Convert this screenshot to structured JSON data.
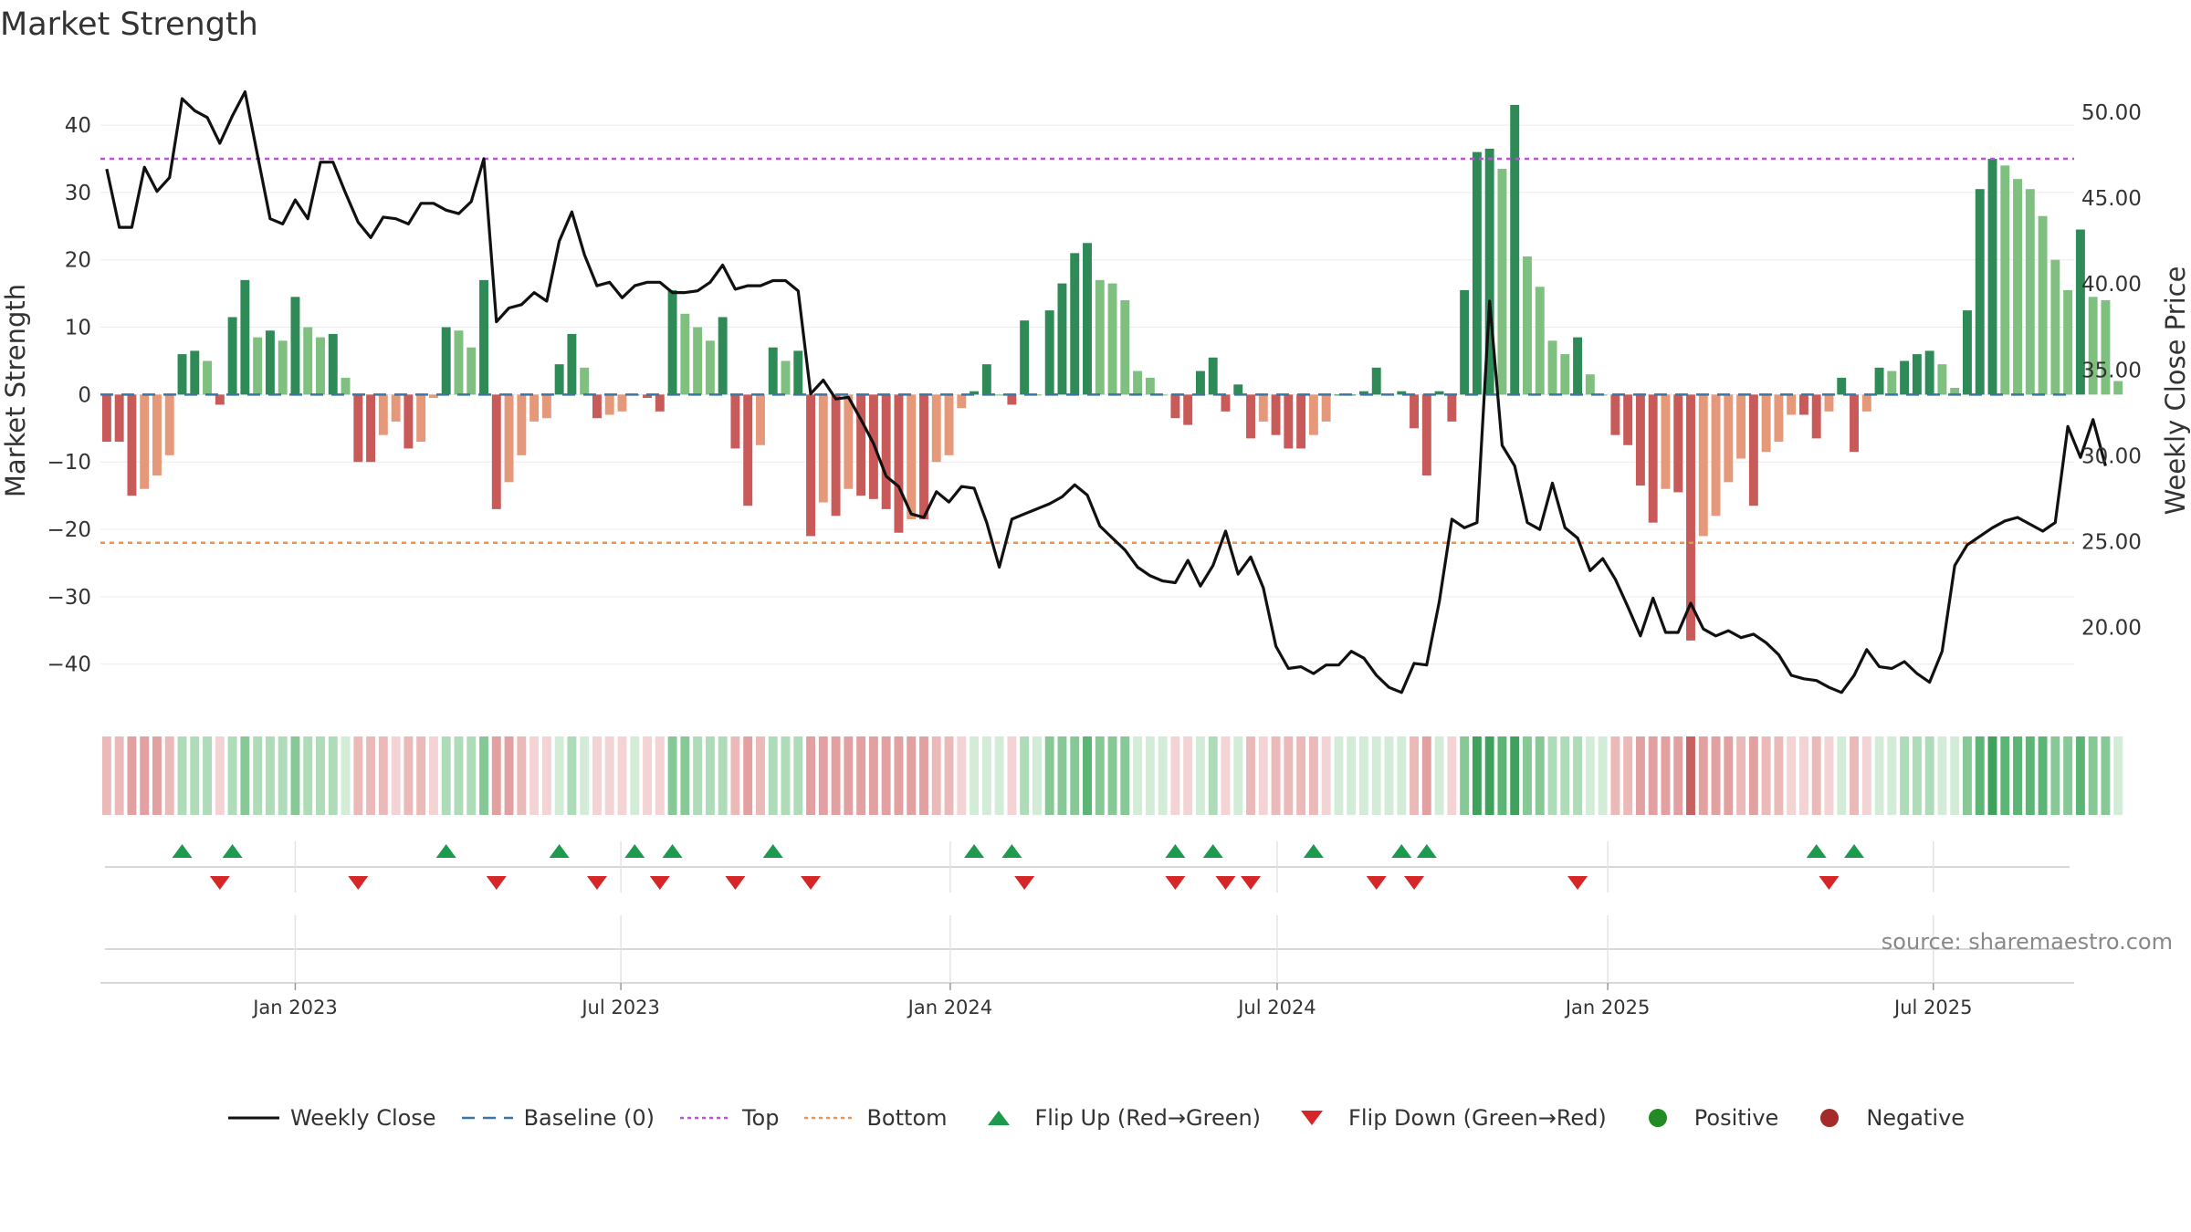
{
  "chart_data": {
    "type": "bar+line",
    "title": "Market Strength",
    "ylabel_left": "Market Strength",
    "ylabel_right": "Weekly Close Price",
    "ylim_left": [
      -46,
      48
    ],
    "ylim_right": [
      15.5,
      52.4
    ],
    "yticks_left": [
      40,
      30,
      20,
      10,
      0,
      -10,
      -20,
      -30,
      -40
    ],
    "yticks_left_labels": [
      "40",
      "30",
      "20",
      "10",
      "0",
      "−10",
      "−20",
      "−30",
      "−40"
    ],
    "yticks_right": [
      50,
      45,
      40,
      35,
      30,
      25,
      20
    ],
    "yticks_right_labels": [
      "50.00",
      "45.00",
      "40.00",
      "35.00",
      "30.00",
      "25.00",
      "20.00"
    ],
    "top_threshold": 35,
    "bottom_threshold": -22,
    "baseline": 0,
    "x_start_week": 0,
    "weeks": 157,
    "date_ticks": [
      {
        "label": "Jan 2023",
        "week": 15.0
      },
      {
        "label": "Jul 2023",
        "week": 40.9
      },
      {
        "label": "Jan 2024",
        "week": 67.1
      },
      {
        "label": "Jul 2024",
        "week": 93.1
      },
      {
        "label": "Jan 2025",
        "week": 119.4
      },
      {
        "label": "Jul 2025",
        "week": 145.3
      }
    ],
    "strength": [
      -7,
      -7,
      -15,
      -14,
      -12,
      -9,
      6,
      6.5,
      5,
      -1.5,
      11.5,
      17,
      8.5,
      9.5,
      8,
      14.5,
      10,
      8.5,
      9,
      2.5,
      -10,
      -10,
      -6,
      -4,
      -8,
      -7,
      -0.5,
      10,
      9.5,
      7,
      17,
      -17,
      -13,
      -9,
      -4,
      -3.5,
      4.5,
      9,
      4,
      -3.5,
      -3,
      -2.5,
      0,
      -0.5,
      -2.5,
      15.5,
      12,
      10,
      8,
      11.5,
      -8,
      -16.5,
      -7.5,
      7,
      5,
      6.5,
      -21,
      -16,
      -18,
      -14,
      -15,
      -15.5,
      -17,
      -20.5,
      -18.5,
      -18.5,
      -10,
      -9,
      -2,
      0.5,
      4.5,
      0,
      -1.5,
      11,
      0,
      12.5,
      16.5,
      21,
      22.5,
      17,
      16.5,
      14,
      3.5,
      2.5,
      0,
      -3.5,
      -4.5,
      3.5,
      5.5,
      -2.5,
      1.5,
      -6.5,
      -4,
      -6,
      -8,
      -8,
      -6,
      -4,
      0,
      0,
      0.5,
      4,
      0,
      0.5,
      -5,
      -12,
      0.5,
      -4,
      15.5,
      36,
      36.5,
      33.5,
      43,
      20.5,
      16,
      8,
      6,
      8.5,
      3,
      0,
      -6,
      -7.5,
      -13.5,
      -19,
      -14,
      -14.5,
      -36.5,
      -21,
      -18,
      -13,
      -9.5,
      -16.5,
      -8.5,
      -7,
      -3,
      -3,
      -6.5,
      -2.5,
      2.5,
      -8.5,
      -2.5,
      4,
      3.5,
      5,
      6,
      6.5,
      4.5,
      1,
      12.5,
      30.5,
      35,
      34,
      32,
      30.5,
      26.5,
      20,
      15.5,
      24.5,
      14.5,
      14,
      2
    ],
    "close": [
      46.7,
      43.3,
      43.3,
      46.8,
      45.4,
      46.2,
      50.8,
      50.1,
      49.7,
      48.2,
      49.8,
      51.2,
      47.5,
      43.8,
      43.5,
      44.9,
      43.8,
      47.1,
      47.1,
      45.3,
      43.6,
      42.7,
      43.9,
      43.8,
      43.5,
      44.7,
      44.7,
      44.3,
      44.1,
      44.8,
      47.3,
      37.8,
      38.6,
      38.8,
      39.5,
      39.0,
      42.5,
      44.2,
      41.7,
      39.9,
      40.1,
      39.2,
      39.9,
      40.1,
      40.1,
      39.5,
      39.5,
      39.6,
      40.1,
      41.1,
      39.7,
      39.9,
      39.9,
      40.2,
      40.2,
      39.6,
      33.6,
      34.4,
      33.3,
      33.4,
      32.1,
      30.7,
      28.8,
      28.2,
      26.6,
      26.4,
      27.9,
      27.3,
      28.2,
      28.1,
      26.1,
      23.5,
      26.3,
      26.6,
      26.9,
      27.2,
      27.6,
      28.3,
      27.7,
      25.9,
      25.2,
      24.5,
      23.5,
      23.0,
      22.7,
      22.6,
      23.9,
      22.4,
      23.6,
      25.6,
      23.1,
      24.1,
      22.3,
      18.9,
      17.6,
      17.7,
      17.3,
      17.8,
      17.8,
      18.6,
      18.2,
      17.2,
      16.5,
      16.2,
      17.9,
      17.8,
      21.5,
      26.3,
      25.8,
      26.1,
      39.0,
      30.6,
      29.4,
      26.1,
      25.7,
      28.4,
      25.8,
      25.2,
      23.3,
      24.0,
      22.8,
      21.2,
      19.5,
      21.7,
      19.7,
      19.7,
      21.4,
      19.9,
      19.5,
      19.8,
      19.4,
      19.6,
      19.1,
      18.4,
      17.2,
      17.0,
      16.9,
      16.5,
      16.2,
      17.2,
      18.7,
      17.7,
      17.6,
      18.0,
      17.3,
      16.8,
      18.6,
      23.6,
      24.8,
      25.3,
      25.8,
      26.2,
      26.4,
      26.0,
      25.6,
      26.1,
      31.7,
      29.9,
      32.1,
      29.4
    ],
    "flips_up": [
      6,
      10,
      27,
      36,
      42,
      45,
      53,
      69,
      72,
      85,
      88,
      96,
      103,
      105,
      136,
      139
    ],
    "flips_down": [
      9,
      20,
      31,
      39,
      44,
      50,
      56,
      73,
      85,
      89,
      91,
      101,
      104,
      117,
      137
    ]
  },
  "legend": [
    {
      "label": "Weekly Close",
      "icon": "solid-line-icon",
      "color": "#111111"
    },
    {
      "label": "Baseline (0)",
      "icon": "dashed-line-icon",
      "color": "#3a75a6"
    },
    {
      "label": "Top",
      "icon": "dotted-line-icon",
      "color": "#b455d4"
    },
    {
      "label": "Bottom",
      "icon": "dotted-line-icon",
      "color": "#e8935a"
    },
    {
      "label": "Flip Up (Red→Green)",
      "icon": "triangle-up-icon",
      "color": "#1d9a4d"
    },
    {
      "label": "Flip Down (Green→Red)",
      "icon": "triangle-down-icon",
      "color": "#d62728"
    },
    {
      "label": "Positive",
      "icon": "circle-icon",
      "color": "#228b22"
    },
    {
      "label": "Negative",
      "icon": "circle-icon",
      "color": "#a52a2a"
    }
  ],
  "source": "source: sharemaestro.com",
  "colors": {
    "pos_strong": "#2e8b57",
    "pos_weak": "#7fbf7f",
    "neg_strong": "#c85a5a",
    "neg_weak": "#e6987a",
    "close_line": "#111111",
    "baseline": "#3a75a6",
    "top": "#b455d4",
    "bottom": "#e8935a",
    "flip_up": "#1d9a4d",
    "flip_down": "#d62728"
  }
}
